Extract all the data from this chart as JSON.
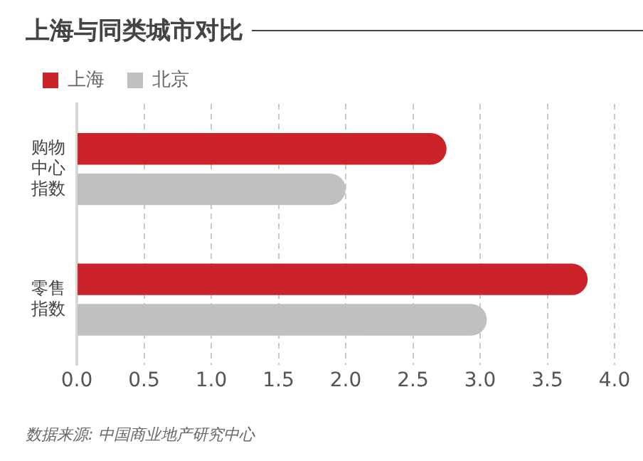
{
  "chart_data": {
    "type": "bar",
    "orientation": "horizontal",
    "title": "上海与同类城市对比",
    "categories": [
      "购物中心指数",
      "零售指数"
    ],
    "series": [
      {
        "name": "上海",
        "color": "#cc2229",
        "values": [
          2.75,
          3.8
        ]
      },
      {
        "name": "北京",
        "color": "#c0c0c0",
        "values": [
          2.0,
          3.05
        ]
      }
    ],
    "xlim": [
      0,
      4
    ],
    "xticks": [
      {
        "value": 0,
        "label": "0.0"
      },
      0.5,
      {
        "value": 1,
        "label": "1.0"
      },
      1.5,
      {
        "value": 2,
        "label": "2.0"
      },
      2.5,
      {
        "value": 3,
        "label": "3.0"
      },
      3.5,
      {
        "value": 4,
        "label": "4.0"
      }
    ],
    "grid": "x",
    "legend": "top left",
    "annotations": [
      "数据来源: 中国商业地产研究中心"
    ]
  }
}
